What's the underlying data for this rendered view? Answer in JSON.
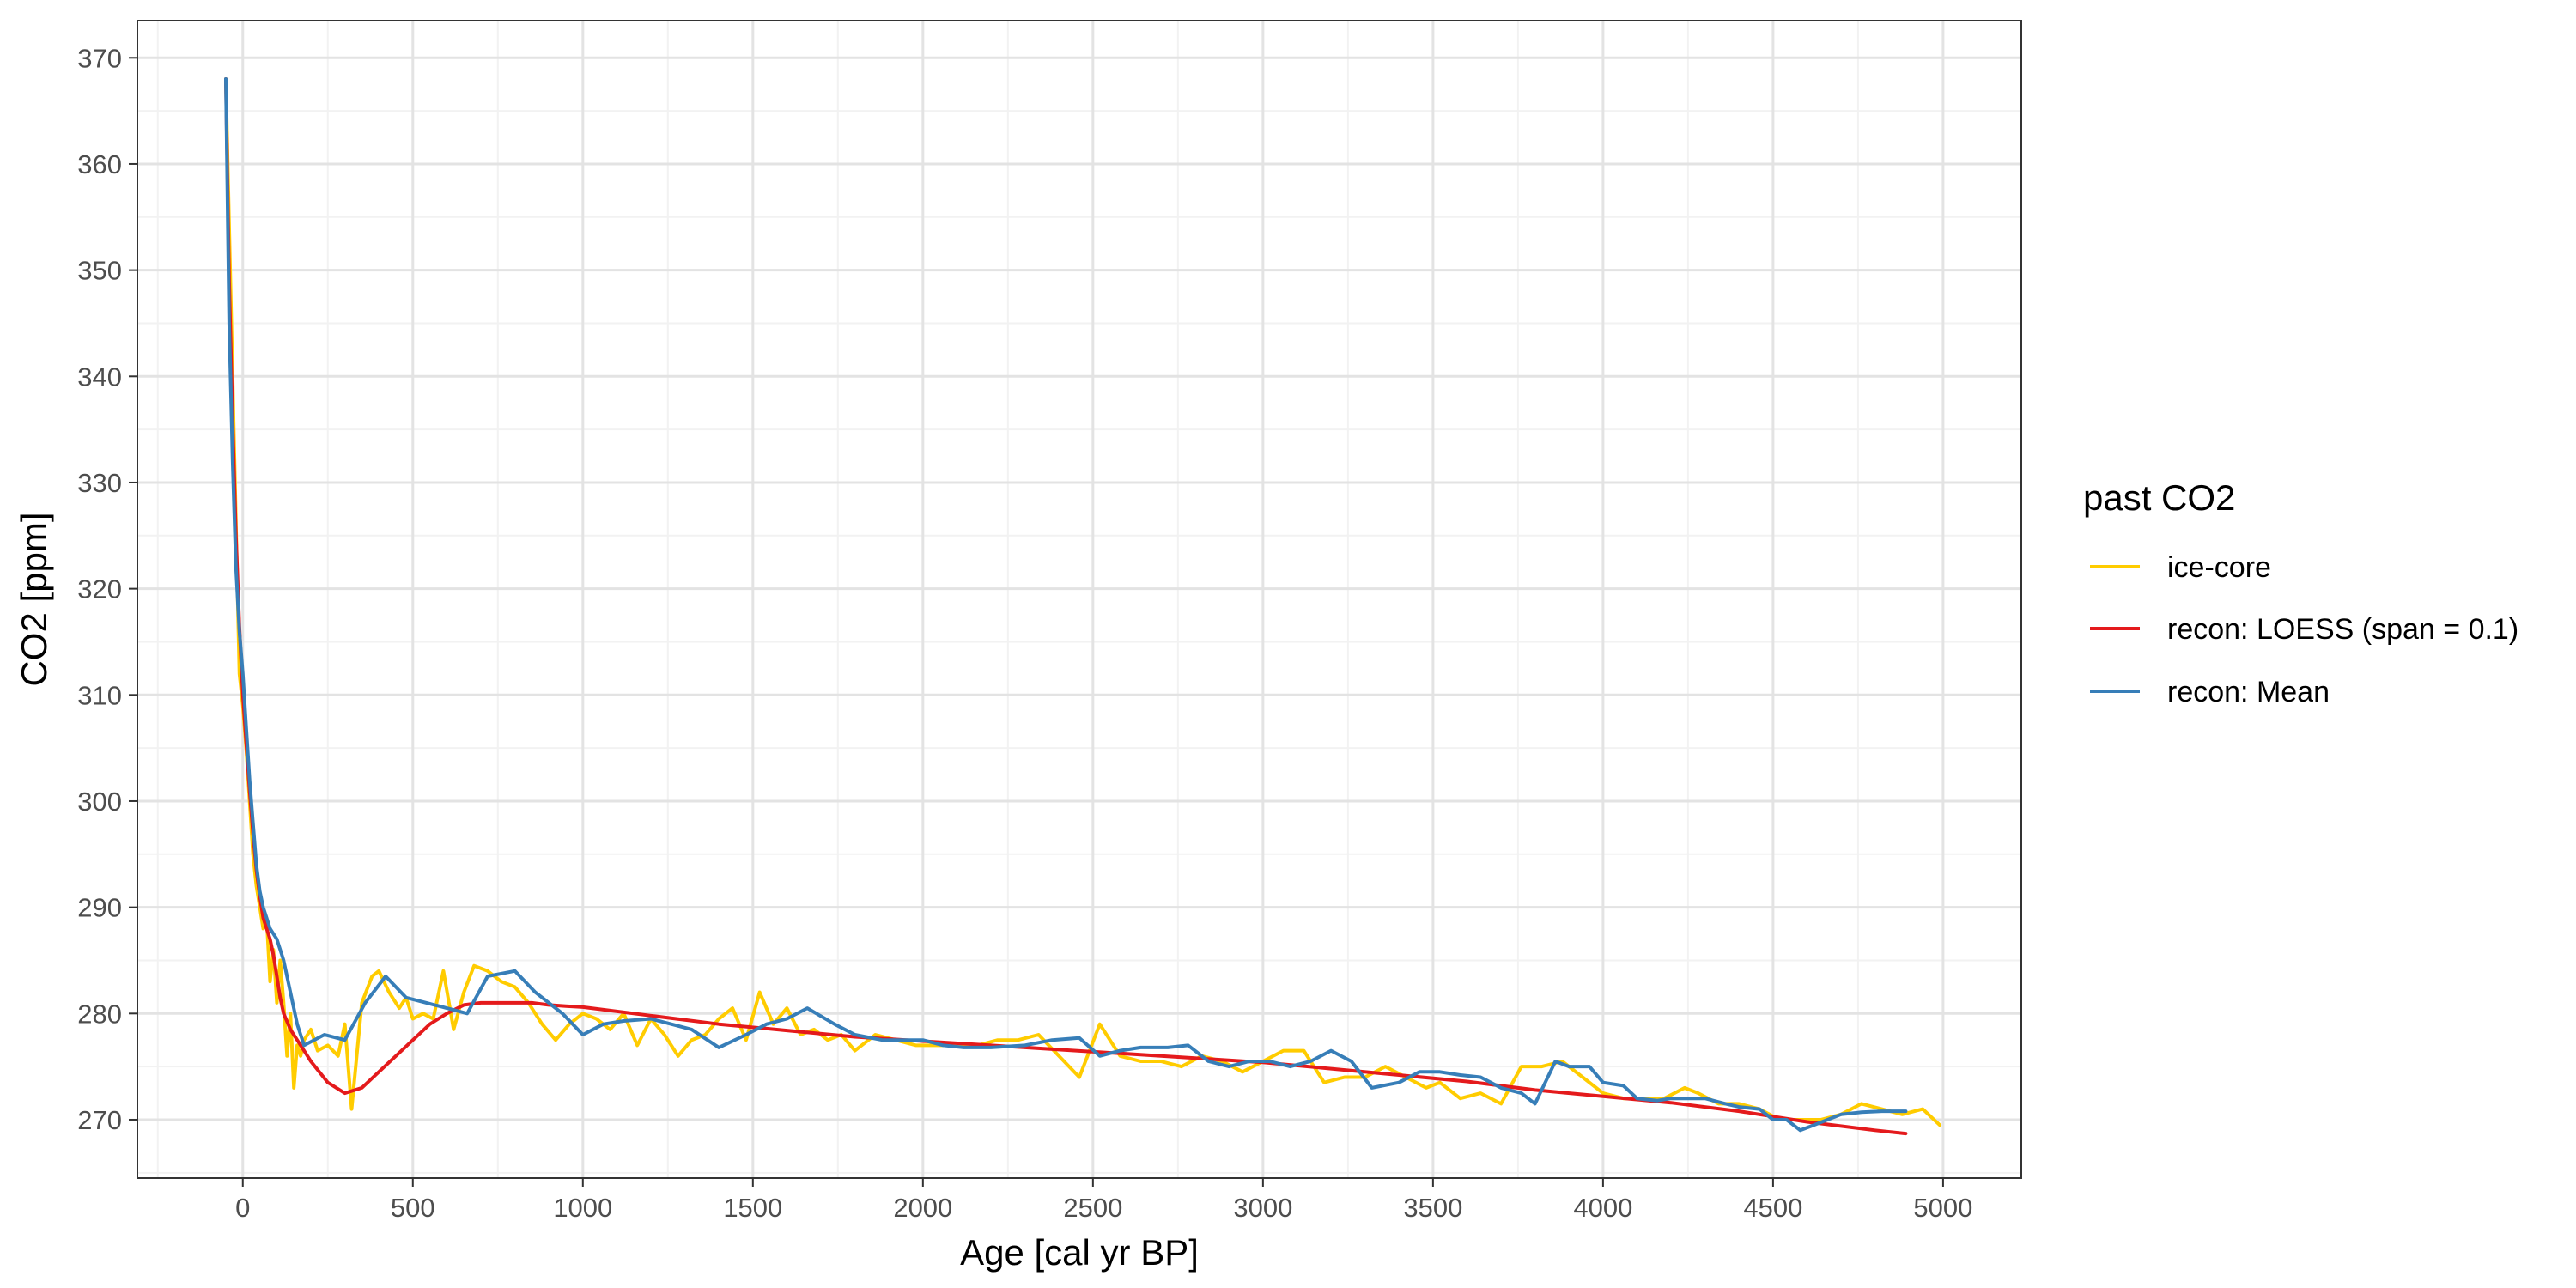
{
  "chart_data": {
    "type": "line",
    "title": "",
    "xlabel": "Age [cal yr BP]",
    "ylabel": "CO2 [ppm]",
    "xlim": [
      -310,
      5230
    ],
    "ylim": [
      264.5,
      373.5
    ],
    "x_ticks": [
      0,
      500,
      1000,
      1500,
      2000,
      2500,
      3000,
      3500,
      4000,
      4500,
      5000
    ],
    "x_tick_labels": [
      "0",
      "500",
      "1000",
      "1500",
      "2000",
      "2500",
      "3000",
      "3500",
      "4000",
      "4500",
      "5000"
    ],
    "y_ticks": [
      270,
      280,
      290,
      300,
      310,
      320,
      330,
      340,
      350,
      360,
      370
    ],
    "y_tick_labels": [
      "270",
      "280",
      "290",
      "300",
      "310",
      "320",
      "330",
      "340",
      "350",
      "360",
      "370"
    ],
    "grid": true,
    "legend": {
      "title": "past CO2",
      "position": "right",
      "entries": [
        "ice-core",
        "recon: LOESS (span = 0.1)",
        "recon: Mean"
      ]
    },
    "series": [
      {
        "name": "ice-core",
        "color": "#FFCC00",
        "x": [
          -50,
          -30,
          -10,
          0,
          10,
          20,
          30,
          40,
          50,
          60,
          70,
          80,
          90,
          100,
          110,
          120,
          130,
          140,
          150,
          160,
          170,
          180,
          200,
          220,
          250,
          280,
          300,
          320,
          350,
          380,
          400,
          430,
          460,
          480,
          500,
          530,
          560,
          590,
          620,
          650,
          680,
          720,
          760,
          800,
          840,
          880,
          920,
          960,
          1000,
          1040,
          1080,
          1120,
          1160,
          1200,
          1240,
          1280,
          1320,
          1360,
          1400,
          1440,
          1480,
          1520,
          1560,
          1600,
          1640,
          1680,
          1720,
          1760,
          1800,
          1860,
          1920,
          1980,
          2040,
          2100,
          2160,
          2220,
          2280,
          2340,
          2400,
          2460,
          2520,
          2580,
          2640,
          2700,
          2760,
          2820,
          2880,
          2940,
          3000,
          3060,
          3120,
          3180,
          3240,
          3300,
          3360,
          3420,
          3480,
          3520,
          3580,
          3640,
          3700,
          3760,
          3820,
          3880,
          3940,
          4000,
          4060,
          4120,
          4180,
          4240,
          4280,
          4340,
          4400,
          4460,
          4520,
          4580,
          4640,
          4700,
          4760,
          4820,
          4880,
          4940,
          4990
        ],
        "values": [
          368.0,
          340.0,
          312.0,
          309.0,
          305.0,
          300.0,
          295.0,
          292.0,
          290.0,
          288.0,
          289.0,
          283.0,
          286.0,
          281.0,
          285.0,
          281.0,
          276.0,
          280.0,
          273.0,
          277.0,
          276.0,
          277.5,
          278.5,
          276.5,
          277.0,
          276.0,
          279.0,
          271.0,
          281.0,
          283.5,
          284.0,
          282.0,
          280.5,
          281.5,
          279.5,
          280.0,
          279.5,
          284.0,
          278.5,
          282.0,
          284.5,
          284.0,
          283.0,
          282.5,
          281.0,
          279.0,
          277.5,
          279.0,
          280.0,
          279.5,
          278.5,
          280.0,
          277.0,
          279.5,
          278.0,
          276.0,
          277.5,
          278.0,
          279.5,
          280.5,
          277.5,
          282.0,
          279.0,
          280.5,
          278.0,
          278.5,
          277.5,
          278.0,
          276.5,
          278.0,
          277.5,
          277.0,
          277.0,
          277.0,
          277.0,
          277.5,
          277.5,
          278.0,
          276.0,
          274.0,
          279.0,
          276.0,
          275.5,
          275.5,
          275.0,
          276.0,
          275.5,
          274.5,
          275.5,
          276.5,
          276.5,
          273.5,
          274.0,
          274.0,
          275.0,
          274.0,
          273.0,
          273.5,
          272.0,
          272.5,
          271.5,
          275.0,
          275.0,
          275.5,
          274.0,
          272.5,
          272.0,
          272.0,
          272.0,
          273.0,
          272.5,
          271.5,
          271.5,
          271.0,
          270.0,
          270.0,
          270.0,
          270.5,
          271.5,
          271.0,
          270.5,
          271.0,
          269.5
        ]
      },
      {
        "name": "recon: LOESS (span = 0.1)",
        "color": "#E41A1C",
        "x": [
          -50,
          -40,
          -30,
          -20,
          -10,
          0,
          10,
          20,
          30,
          40,
          50,
          60,
          70,
          80,
          90,
          100,
          110,
          120,
          140,
          160,
          180,
          200,
          250,
          300,
          350,
          400,
          450,
          500,
          550,
          600,
          650,
          700,
          750,
          800,
          850,
          900,
          950,
          1000,
          1200,
          1400,
          1600,
          1800,
          2000,
          2200,
          2400,
          2600,
          2800,
          3000,
          3200,
          3400,
          3600,
          3800,
          4000,
          4200,
          4400,
          4600,
          4800,
          4890
        ],
        "values": [
          368.0,
          349.0,
          336.0,
          325.0,
          316.5,
          310.0,
          305.5,
          301.0,
          297.0,
          293.5,
          291.0,
          289.0,
          288.0,
          287.0,
          285.5,
          283.5,
          281.5,
          280.0,
          278.5,
          277.5,
          276.5,
          275.5,
          273.5,
          272.5,
          273.0,
          274.5,
          276.0,
          277.5,
          279.0,
          280.0,
          280.8,
          281.0,
          281.0,
          281.0,
          281.0,
          280.8,
          280.7,
          280.6,
          279.8,
          279.0,
          278.4,
          277.8,
          277.4,
          277.0,
          276.6,
          276.2,
          275.8,
          275.4,
          274.8,
          274.2,
          273.6,
          272.8,
          272.2,
          271.6,
          270.8,
          269.8,
          269.0,
          268.7
        ]
      },
      {
        "name": "recon: Mean",
        "color": "#377EB8",
        "x": [
          -50,
          -40,
          -30,
          -20,
          -10,
          0,
          10,
          20,
          30,
          40,
          50,
          60,
          80,
          100,
          120,
          140,
          160,
          180,
          240,
          300,
          360,
          420,
          480,
          540,
          600,
          660,
          720,
          800,
          860,
          940,
          1000,
          1060,
          1120,
          1200,
          1260,
          1320,
          1400,
          1480,
          1540,
          1600,
          1660,
          1740,
          1800,
          1880,
          1940,
          2000,
          2060,
          2120,
          2200,
          2300,
          2380,
          2460,
          2520,
          2580,
          2640,
          2720,
          2780,
          2840,
          2900,
          2960,
          3020,
          3080,
          3140,
          3200,
          3260,
          3320,
          3400,
          3460,
          3520,
          3580,
          3640,
          3700,
          3760,
          3800,
          3860,
          3900,
          3960,
          4000,
          4060,
          4100,
          4160,
          4200,
          4260,
          4300,
          4360,
          4400,
          4460,
          4500,
          4540,
          4580,
          4620,
          4660,
          4700,
          4760,
          4820,
          4890
        ],
        "values": [
          368.0,
          345.0,
          332.0,
          322.0,
          316.0,
          312.0,
          307.0,
          302.0,
          298.0,
          294.0,
          291.5,
          290.0,
          288.0,
          287.0,
          285.0,
          282.0,
          279.0,
          277.0,
          278.0,
          277.5,
          281.0,
          283.5,
          281.5,
          281.0,
          280.5,
          280.0,
          283.5,
          284.0,
          282.0,
          280.0,
          278.0,
          279.0,
          279.3,
          279.5,
          279.0,
          278.5,
          276.8,
          278.0,
          279.0,
          279.5,
          280.5,
          279.0,
          278.0,
          277.5,
          277.5,
          277.5,
          277.0,
          276.8,
          276.8,
          277.0,
          277.5,
          277.7,
          276.0,
          276.5,
          276.8,
          276.8,
          277.0,
          275.5,
          275.0,
          275.5,
          275.5,
          275.0,
          275.5,
          276.5,
          275.5,
          273.0,
          273.5,
          274.5,
          274.5,
          274.2,
          274.0,
          273.0,
          272.5,
          271.5,
          275.5,
          275.0,
          275.0,
          273.5,
          273.2,
          272.0,
          271.8,
          272.0,
          272.0,
          272.0,
          271.5,
          271.2,
          271.0,
          270.0,
          270.0,
          269.0,
          269.5,
          270.0,
          270.5,
          270.7,
          270.8,
          270.8
        ]
      }
    ]
  }
}
